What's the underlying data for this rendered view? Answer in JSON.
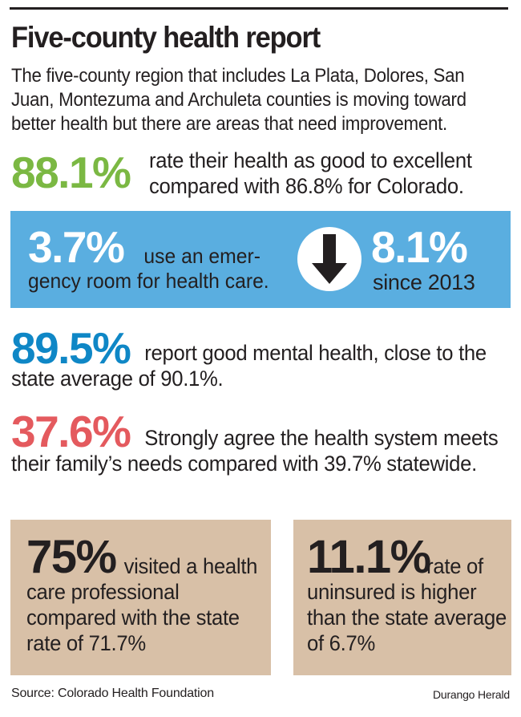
{
  "title": "Five-county health report",
  "intro": "The five-county region that includes La Plata, Dolores, San Juan, Montezuma and Archuleta counties is moving toward better health but there are areas that need improvement.",
  "stat_health": {
    "value": "88.1%",
    "text": "rate their health as good to excellent compared with 86.8% for Colorado.",
    "color": "#7bb843"
  },
  "stat_er": {
    "value": "3.7%",
    "text": "use an emer- gency room for health care.",
    "text_line1": "use an emer-",
    "text_line2": "gency room for health care.",
    "arrow_icon": "down-arrow-icon",
    "change": "8.1%",
    "since": "since 2013",
    "banner_color": "#5aaee0"
  },
  "stat_mental": {
    "value": "89.5%",
    "text": "report good mental health, close to the state average of 90.1%.",
    "color": "#0f87c6"
  },
  "stat_system": {
    "value": "37.6%",
    "text": "Strongly agree the health system meets their family’s needs compared with 39.7% statewide.",
    "color": "#e45a5e"
  },
  "box_visits": {
    "value": "75%",
    "text": "visited a health care professional compared with the state rate of 71.7%"
  },
  "box_uninsured": {
    "value": "11.1%",
    "text": "rate of uninsured is higher than the state average of 6.7%"
  },
  "box_color": "#d8c0a7",
  "source": "Source: Colorado Health Foundation",
  "credit": "Durango Herald"
}
